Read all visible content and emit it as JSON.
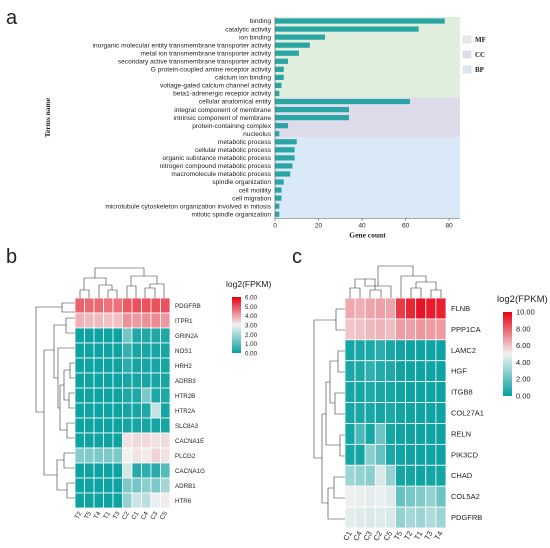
{
  "chart_data": [
    {
      "panel": "a",
      "type": "bar",
      "orientation": "horizontal",
      "xlabel": "Gene count",
      "ylabel": "Terms name",
      "xlim": [
        0,
        85
      ],
      "xticks": [
        0,
        20,
        40,
        60,
        80
      ],
      "bar_color": "#2aa5a5",
      "groups": [
        {
          "name": "MF",
          "color": "#dfeedd"
        },
        {
          "name": "CC",
          "color": "#dedbea"
        },
        {
          "name": "BP",
          "color": "#d9e9f8"
        }
      ],
      "terms": [
        {
          "name": "binding",
          "value": 78,
          "group": "MF"
        },
        {
          "name": "catalytic activity",
          "value": 66,
          "group": "MF"
        },
        {
          "name": "ion binding",
          "value": 23,
          "group": "MF"
        },
        {
          "name": "inorganic molecular entity transmembrane transporter activity",
          "value": 16,
          "group": "MF"
        },
        {
          "name": "metal ion transmembrane transporter activity",
          "value": 11,
          "group": "MF"
        },
        {
          "name": "secondary active transmembrane transporter activity",
          "value": 6,
          "group": "MF"
        },
        {
          "name": "G protein-coupled amine receptor activity",
          "value": 4,
          "group": "MF"
        },
        {
          "name": "calcium ion binding",
          "value": 4,
          "group": "MF"
        },
        {
          "name": "voltage-gated calcium channel activity",
          "value": 3,
          "group": "MF"
        },
        {
          "name": "beta1-adrenergic receptor activity",
          "value": 2,
          "group": "MF"
        },
        {
          "name": "cellular anatomical entity",
          "value": 62,
          "group": "CC"
        },
        {
          "name": "integral component of membrane",
          "value": 34,
          "group": "CC"
        },
        {
          "name": "intrinsic component of membrane",
          "value": 34,
          "group": "CC"
        },
        {
          "name": "protein-containing complex",
          "value": 6,
          "group": "CC"
        },
        {
          "name": "nucleolus",
          "value": 2,
          "group": "CC"
        },
        {
          "name": "metabolic process",
          "value": 10,
          "group": "BP"
        },
        {
          "name": "cellular metabolic process",
          "value": 9,
          "group": "BP"
        },
        {
          "name": "organic substance metabolic process",
          "value": 9,
          "group": "BP"
        },
        {
          "name": "nitrogen compound metabolic process",
          "value": 8,
          "group": "BP"
        },
        {
          "name": "macromolecule metabolic process",
          "value": 7,
          "group": "BP"
        },
        {
          "name": "spindle organization",
          "value": 4,
          "group": "BP"
        },
        {
          "name": "cell motility",
          "value": 3,
          "group": "BP"
        },
        {
          "name": "cell migration",
          "value": 3,
          "group": "BP"
        },
        {
          "name": "microtubule cytoskeleton organization involved in mitosis",
          "value": 2,
          "group": "BP"
        },
        {
          "name": "mitotic spindle organization",
          "value": 2,
          "group": "BP"
        }
      ]
    },
    {
      "panel": "b",
      "type": "heatmap",
      "legend_title": "log2(FPKM)",
      "scale_ticks": [
        "6.00",
        "5.00",
        "4.00",
        "3.00",
        "2.00",
        "1.00",
        "0.00"
      ],
      "vmin": 0,
      "vmax": 6,
      "columns": [
        "T2",
        "T5",
        "T4",
        "T1",
        "T3",
        "C2",
        "C1",
        "C4",
        "C3",
        "C5"
      ],
      "rows": [
        "PDGFRB",
        "ITPR1",
        "GRIN2A",
        "NOS1",
        "HRH2",
        "ADRB3",
        "HTR2B",
        "HTR2A",
        "SLC8A3",
        "CACNA1E",
        "PLCG2",
        "CACNA1G",
        "ADRB1",
        "HTR6"
      ],
      "values": [
        [
          4.8,
          4.7,
          4.7,
          4.6,
          4.6,
          4.9,
          5.0,
          5.0,
          5.0,
          5.0
        ],
        [
          3.8,
          3.7,
          3.7,
          3.6,
          3.6,
          4.2,
          4.1,
          4.2,
          4.3,
          4.1
        ],
        [
          0.1,
          0.1,
          0.1,
          0.1,
          0.1,
          1.4,
          0.3,
          0.3,
          0.3,
          0.3
        ],
        [
          0.1,
          0.1,
          0.1,
          0.1,
          0.1,
          0.6,
          0.2,
          0.2,
          0.2,
          0.2
        ],
        [
          0.1,
          0.1,
          0.1,
          0.1,
          0.1,
          0.5,
          0.2,
          0.2,
          0.2,
          0.2
        ],
        [
          0.1,
          0.1,
          0.1,
          0.1,
          0.1,
          0.2,
          0.2,
          0.2,
          0.2,
          0.2
        ],
        [
          0.1,
          0.1,
          0.1,
          0.1,
          0.1,
          0.3,
          0.3,
          1.5,
          0.3,
          0.3
        ],
        [
          0.1,
          0.1,
          0.1,
          0.1,
          0.1,
          0.2,
          0.2,
          0.3,
          2.4,
          0.2
        ],
        [
          0.1,
          0.1,
          0.1,
          0.1,
          0.1,
          0.2,
          0.2,
          0.2,
          0.2,
          0.2
        ],
        [
          0.1,
          0.1,
          0.1,
          0.1,
          0.1,
          3.2,
          3.3,
          3.3,
          3.2,
          3.3
        ],
        [
          1.6,
          1.6,
          1.5,
          1.5,
          1.5,
          3.0,
          3.2,
          3.1,
          3.4,
          3.2
        ],
        [
          0.1,
          0.1,
          0.1,
          0.1,
          0.1,
          2.6,
          0.4,
          0.5,
          0.4,
          1.0
        ],
        [
          0.1,
          0.1,
          0.1,
          0.1,
          0.1,
          1.5,
          1.4,
          1.7,
          1.5,
          2.0
        ],
        [
          0.1,
          0.1,
          0.1,
          0.1,
          0.1,
          1.8,
          2.5,
          2.3,
          2.9,
          3.1
        ]
      ]
    },
    {
      "panel": "c",
      "type": "heatmap",
      "legend_title": "log2(FPKM)",
      "scale_ticks": [
        "10.00",
        "8.00",
        "6.00",
        "4.00",
        "2.00",
        "0.00"
      ],
      "vmin": 0,
      "vmax": 10,
      "columns": [
        "C1",
        "C4",
        "C3",
        "C2",
        "C5",
        "T5",
        "T2",
        "T1",
        "T3",
        "T4"
      ],
      "rows": [
        "FLNB",
        "PPP1CA",
        "LAMC2",
        "HGF",
        "ITGB8",
        "COL27A1",
        "RELN",
        "PIK3CD",
        "CHAD",
        "COL5A2",
        "PDGFRB"
      ],
      "values": [
        [
          6.5,
          6.4,
          6.6,
          6.7,
          6.6,
          8.8,
          9.2,
          9.6,
          9.4,
          9.3
        ],
        [
          5.9,
          6.0,
          6.2,
          6.3,
          6.1,
          6.8,
          6.7,
          6.9,
          6.8,
          6.8
        ],
        [
          0.3,
          0.4,
          0.5,
          0.8,
          0.4,
          0.2,
          0.2,
          0.2,
          0.2,
          0.2
        ],
        [
          0.4,
          0.5,
          0.9,
          0.6,
          0.5,
          0.2,
          0.2,
          0.2,
          0.2,
          0.2
        ],
        [
          0.3,
          0.3,
          0.5,
          0.4,
          0.3,
          0.2,
          0.2,
          0.2,
          0.2,
          0.2
        ],
        [
          0.3,
          0.4,
          0.4,
          0.3,
          0.4,
          0.2,
          0.2,
          0.2,
          0.2,
          0.2
        ],
        [
          0.3,
          1.5,
          0.4,
          2.2,
          0.3,
          0.2,
          0.2,
          0.2,
          0.2,
          0.2
        ],
        [
          0.3,
          0.3,
          2.8,
          2.0,
          0.4,
          0.2,
          0.2,
          0.2,
          0.2,
          0.2
        ],
        [
          3.2,
          3.0,
          2.8,
          4.4,
          3.0,
          0.3,
          0.3,
          0.2,
          0.3,
          0.3
        ],
        [
          4.9,
          4.8,
          4.7,
          4.8,
          4.6,
          2.0,
          2.4,
          2.6,
          3.0,
          2.2
        ],
        [
          4.7,
          4.6,
          4.5,
          4.6,
          4.5,
          3.0,
          3.4,
          3.2,
          3.6,
          3.2
        ]
      ]
    }
  ],
  "panel_labels": {
    "a": "a",
    "b": "b",
    "c": "c"
  }
}
